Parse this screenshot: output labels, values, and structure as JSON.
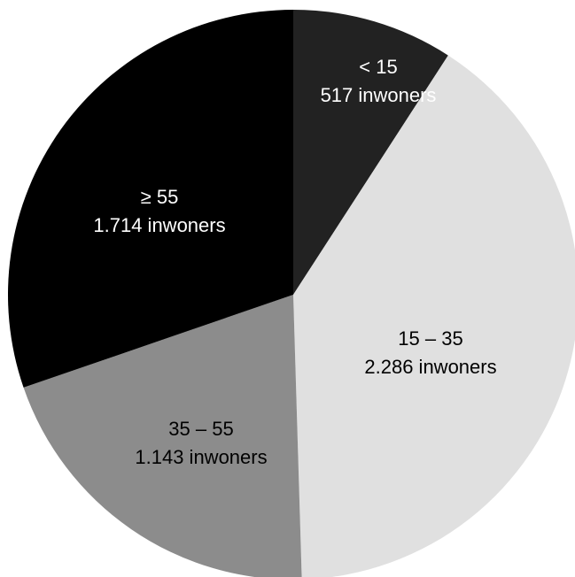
{
  "chart_data": {
    "type": "pie",
    "categories": [
      "< 15",
      "15 – 35",
      "35 – 55",
      "≥ 55"
    ],
    "values": [
      517,
      2286,
      1143,
      1714
    ],
    "value_labels": [
      "517 inwoners",
      "2.286 inwoners",
      "1.143 inwoners",
      "1.714 inwoners"
    ],
    "colors": [
      "#222222",
      "#e0e0e0",
      "#8c8c8c",
      "#000000"
    ],
    "label_colors": [
      "#ffffff",
      "#000000",
      "#000000",
      "#ffffff"
    ],
    "start": "top",
    "direction": "clockwise"
  }
}
